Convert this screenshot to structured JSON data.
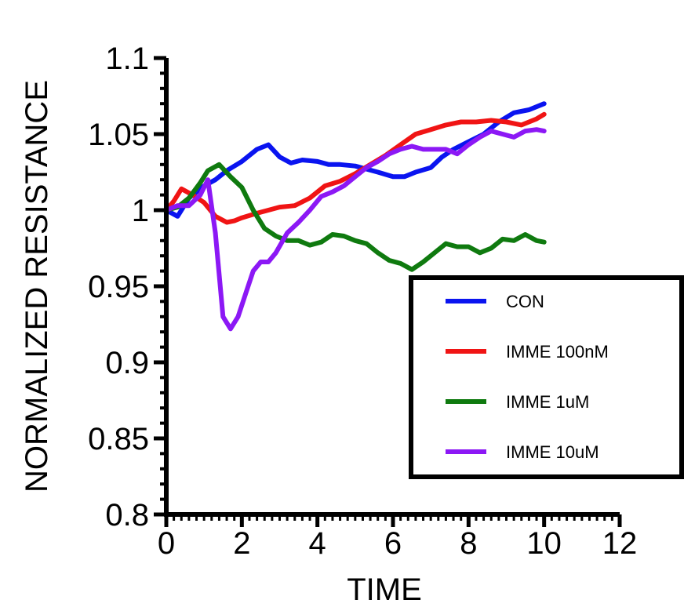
{
  "chart_data": {
    "type": "line",
    "title": "",
    "xlabel": "TIME",
    "ylabel": "NORMALIZED RESISTANCE",
    "xlim": [
      0,
      12
    ],
    "ylim": [
      0.8,
      1.1
    ],
    "xticks": [
      0,
      2,
      4,
      6,
      8,
      10,
      12
    ],
    "xtick_labels": [
      "0",
      "2",
      "4",
      "6",
      "8",
      "10",
      "12"
    ],
    "yticks": [
      0.8,
      0.85,
      0.9,
      0.95,
      1.0,
      1.05,
      1.1
    ],
    "ytick_labels": [
      "0.8",
      "0.85",
      "0.9",
      "0.95",
      "1",
      "1.05",
      "1.1"
    ],
    "grid": false,
    "legend_position": "bottom-right",
    "series": [
      {
        "name": "CON",
        "color": "#0a14f0",
        "x": [
          0,
          0.3,
          0.6,
          1.0,
          1.3,
          1.6,
          2.0,
          2.4,
          2.7,
          3.0,
          3.3,
          3.6,
          4.0,
          4.3,
          4.6,
          5.0,
          5.3,
          5.6,
          6.0,
          6.3,
          6.6,
          7.0,
          7.3,
          7.6,
          8.0,
          8.4,
          8.8,
          9.2,
          9.6,
          10.0
        ],
        "y": [
          1.0,
          0.996,
          1.008,
          1.016,
          1.02,
          1.026,
          1.032,
          1.04,
          1.043,
          1.035,
          1.031,
          1.033,
          1.032,
          1.03,
          1.03,
          1.029,
          1.027,
          1.025,
          1.022,
          1.022,
          1.025,
          1.028,
          1.035,
          1.04,
          1.045,
          1.05,
          1.058,
          1.064,
          1.066,
          1.07
        ]
      },
      {
        "name": "IMME 100nM",
        "color": "#f01414",
        "x": [
          0,
          0.2,
          0.4,
          0.7,
          1.0,
          1.3,
          1.6,
          1.8,
          2.0,
          2.4,
          2.7,
          3.0,
          3.4,
          3.8,
          4.2,
          4.6,
          5.0,
          5.4,
          5.8,
          6.2,
          6.6,
          7.0,
          7.4,
          7.8,
          8.2,
          8.6,
          9.0,
          9.4,
          9.8,
          10.0
        ],
        "y": [
          1.0,
          1.006,
          1.014,
          1.01,
          1.005,
          0.996,
          0.992,
          0.993,
          0.995,
          0.998,
          1.0,
          1.002,
          1.003,
          1.008,
          1.016,
          1.019,
          1.024,
          1.03,
          1.036,
          1.043,
          1.05,
          1.053,
          1.056,
          1.058,
          1.058,
          1.059,
          1.058,
          1.056,
          1.06,
          1.063
        ]
      },
      {
        "name": "IMME 1uM",
        "color": "#0f7a0f",
        "x": [
          0,
          0.3,
          0.6,
          0.9,
          1.1,
          1.4,
          1.7,
          2.0,
          2.3,
          2.6,
          2.9,
          3.2,
          3.5,
          3.8,
          4.1,
          4.4,
          4.7,
          5.0,
          5.3,
          5.6,
          5.9,
          6.2,
          6.5,
          6.8,
          7.1,
          7.4,
          7.7,
          8.0,
          8.3,
          8.6,
          8.9,
          9.2,
          9.5,
          9.8,
          10.0
        ],
        "y": [
          1.0,
          1.002,
          1.008,
          1.018,
          1.026,
          1.03,
          1.022,
          1.015,
          1.0,
          0.988,
          0.983,
          0.98,
          0.98,
          0.977,
          0.979,
          0.984,
          0.983,
          0.98,
          0.978,
          0.972,
          0.967,
          0.965,
          0.961,
          0.966,
          0.972,
          0.978,
          0.976,
          0.976,
          0.972,
          0.975,
          0.981,
          0.98,
          0.984,
          0.98,
          0.979
        ]
      },
      {
        "name": "IMME 10uM",
        "color": "#8c18f5",
        "x": [
          0,
          0.3,
          0.6,
          0.9,
          1.1,
          1.3,
          1.5,
          1.7,
          1.9,
          2.1,
          2.3,
          2.5,
          2.7,
          2.9,
          3.2,
          3.5,
          3.8,
          4.1,
          4.4,
          4.7,
          5.0,
          5.3,
          5.6,
          5.9,
          6.2,
          6.5,
          6.8,
          7.1,
          7.4,
          7.7,
          8.0,
          8.3,
          8.6,
          8.9,
          9.2,
          9.5,
          9.8,
          10.0
        ],
        "y": [
          1.0,
          1.003,
          1.003,
          1.01,
          1.02,
          0.985,
          0.93,
          0.922,
          0.93,
          0.945,
          0.96,
          0.966,
          0.966,
          0.972,
          0.985,
          0.992,
          1.0,
          1.009,
          1.012,
          1.016,
          1.022,
          1.028,
          1.032,
          1.037,
          1.04,
          1.042,
          1.04,
          1.04,
          1.04,
          1.037,
          1.043,
          1.048,
          1.052,
          1.05,
          1.048,
          1.052,
          1.053,
          1.052
        ]
      }
    ]
  }
}
